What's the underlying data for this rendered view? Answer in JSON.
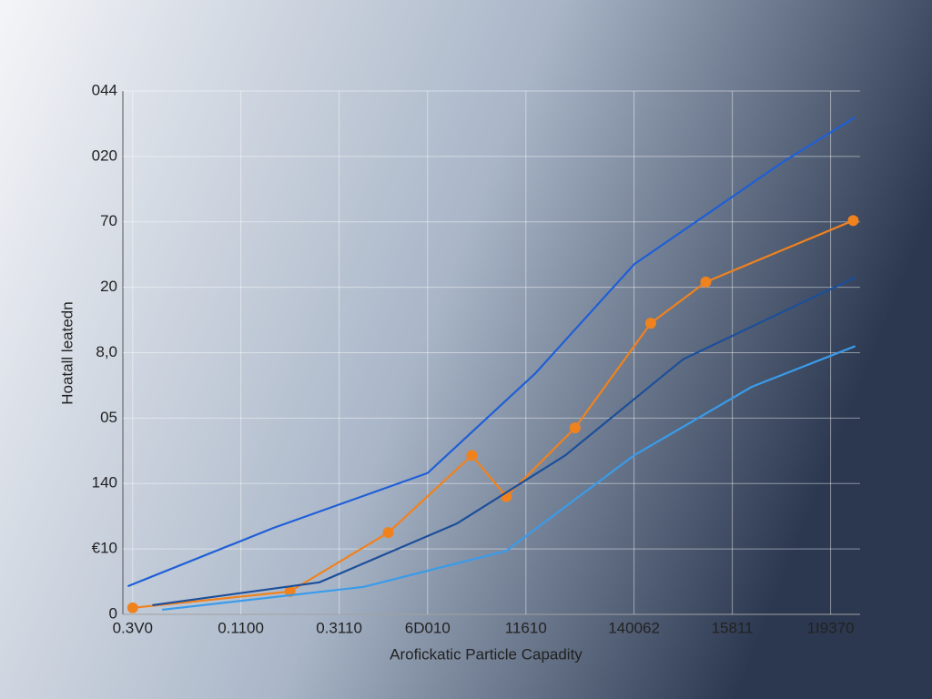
{
  "chart_data": {
    "type": "line",
    "xlabel": "Arofickatic Particle Capadity",
    "ylabel": "Hoatall leatedn",
    "xlim": [
      0,
      7.5
    ],
    "ylim": [
      0,
      8
    ],
    "xticks": [
      {
        "value": 0.1,
        "label": "0.3V0"
      },
      {
        "value": 1.2,
        "label": "0.1100"
      },
      {
        "value": 2.2,
        "label": "0.3110"
      },
      {
        "value": 3.1,
        "label": "6D010"
      },
      {
        "value": 4.1,
        "label": "11610"
      },
      {
        "value": 5.2,
        "label": "140062"
      },
      {
        "value": 6.2,
        "label": "15811"
      },
      {
        "value": 7.2,
        "label": "1I9370"
      }
    ],
    "yticks": [
      {
        "value": 0,
        "label": "0"
      },
      {
        "value": 1,
        "label": "€10"
      },
      {
        "value": 2,
        "label": "140"
      },
      {
        "value": 3,
        "label": "05"
      },
      {
        "value": 4,
        "label": "8,0"
      },
      {
        "value": 5,
        "label": "20"
      },
      {
        "value": 6,
        "label": "70"
      },
      {
        "value": 7,
        "label": "020"
      },
      {
        "value": 8,
        "label": "044"
      }
    ],
    "grid": true,
    "series": [
      {
        "color": "#1f5fd6",
        "markers": false,
        "x": [
          0.05,
          1.53,
          3.1,
          4.2,
          5.2,
          6.7,
          7.45
        ],
        "values": [
          0.43,
          1.32,
          2.16,
          3.69,
          5.35,
          6.9,
          7.6
        ]
      },
      {
        "color": "#f0821e",
        "markers": true,
        "x": [
          0.1,
          1.7,
          2.7,
          3.55,
          3.9,
          4.6,
          5.37,
          5.93,
          7.43
        ],
        "values": [
          0.1,
          0.35,
          1.25,
          2.43,
          1.8,
          2.85,
          4.45,
          5.08,
          6.02
        ]
      },
      {
        "color": "#1c4f9a",
        "markers": false,
        "x": [
          0.3,
          2.0,
          3.4,
          4.5,
          5.7,
          7.45
        ],
        "values": [
          0.14,
          0.49,
          1.39,
          2.43,
          3.9,
          5.15
        ]
      },
      {
        "color": "#3a9bea",
        "markers": false,
        "x": [
          0.4,
          2.45,
          3.9,
          5.2,
          6.4,
          7.45
        ],
        "values": [
          0.07,
          0.42,
          0.97,
          2.43,
          3.48,
          4.1
        ]
      }
    ]
  }
}
